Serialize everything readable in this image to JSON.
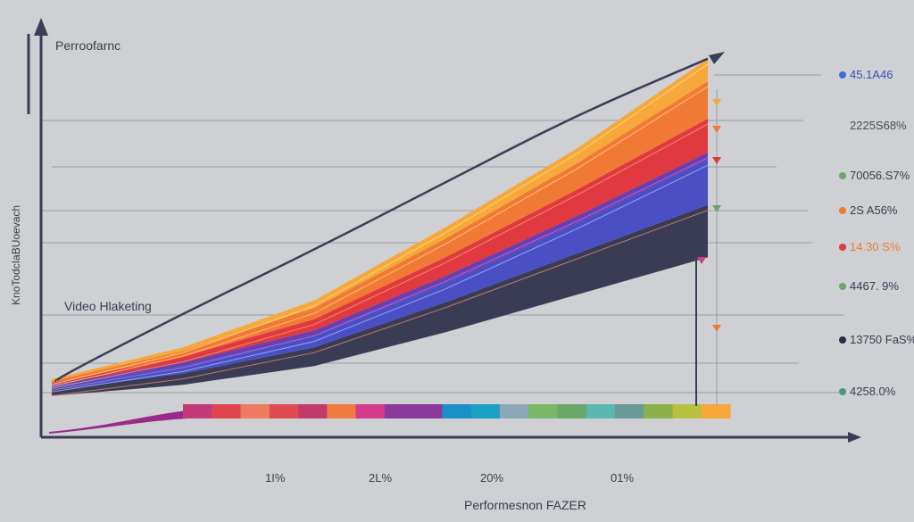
{
  "chart_data": {
    "type": "area",
    "title": "Perroofarnc",
    "ylabel": "KnoTodcIaBUoevach",
    "xlabel": "Performesnon FAZER",
    "annotation": "Video Hlaketing",
    "x": [
      0,
      2,
      4,
      6,
      8,
      10
    ],
    "xlim": [
      0,
      10
    ],
    "ylim": [
      0,
      105
    ],
    "x_tick_labels": [
      "1I%",
      "2L%",
      "20%",
      "01%"
    ],
    "grid": true,
    "baseline": [
      11,
      14,
      19,
      28,
      38,
      48
    ],
    "series": [
      {
        "color": "#3a3c55",
        "values": [
          1.5,
          3,
          5,
          8,
          11,
          14
        ]
      },
      {
        "color": "#4a4fc4",
        "values": [
          1,
          2,
          3,
          5,
          8,
          12
        ]
      },
      {
        "color": "#6a3fb0",
        "values": [
          0.5,
          1,
          1.5,
          2,
          2,
          2
        ]
      },
      {
        "color": "#e0393f",
        "values": [
          0.5,
          1.5,
          3,
          5,
          7,
          9
        ]
      },
      {
        "color": "#f07a35",
        "values": [
          0.5,
          1.5,
          3,
          5,
          7,
          10
        ]
      },
      {
        "color": "#f6a83a",
        "values": [
          0.5,
          1,
          2,
          3,
          4,
          6
        ]
      }
    ],
    "trend_line": {
      "color": "#3a3d55",
      "values": [
        15,
        33,
        50,
        68,
        86,
        101
      ]
    },
    "color_strip": [
      "#c23a7a",
      "#e0454f",
      "#ee7a62",
      "#e04a52",
      "#c23a6a",
      "#f07a40",
      "#d63a8a",
      "#8a3a9a",
      "#8a3a9a",
      "#1a8fc8",
      "#1aa0c0",
      "#8aa8b8",
      "#7ab868",
      "#6aa868",
      "#5ab8b0",
      "#6a9a98",
      "#8ab048",
      "#b8c040",
      "#f6a83a"
    ],
    "right_labels": [
      {
        "text": "45.1A46",
        "color": "#3a4fb0",
        "marker": "#3a6fd8"
      },
      {
        "text": "2225S68%",
        "color": "#4a4a5a",
        "marker": ""
      },
      {
        "text": "70056.S7%",
        "color": "#3a3d4e",
        "marker": "#6aa868"
      },
      {
        "text": "2S A56%",
        "color": "#3a3d4e",
        "marker": "#f07a35"
      },
      {
        "text": "14.30 S%",
        "color": "#f07a35",
        "marker": "#e0393f"
      },
      {
        "text": "4467. 9%",
        "color": "#3a3d4e",
        "marker": "#6aa868"
      },
      {
        "text": "13750 FaS%",
        "color": "#3a3d4e",
        "marker": "#2a2d45"
      },
      {
        "text": "4258.0%",
        "color": "#3a3d4e",
        "marker": "#4a9a78"
      }
    ]
  }
}
